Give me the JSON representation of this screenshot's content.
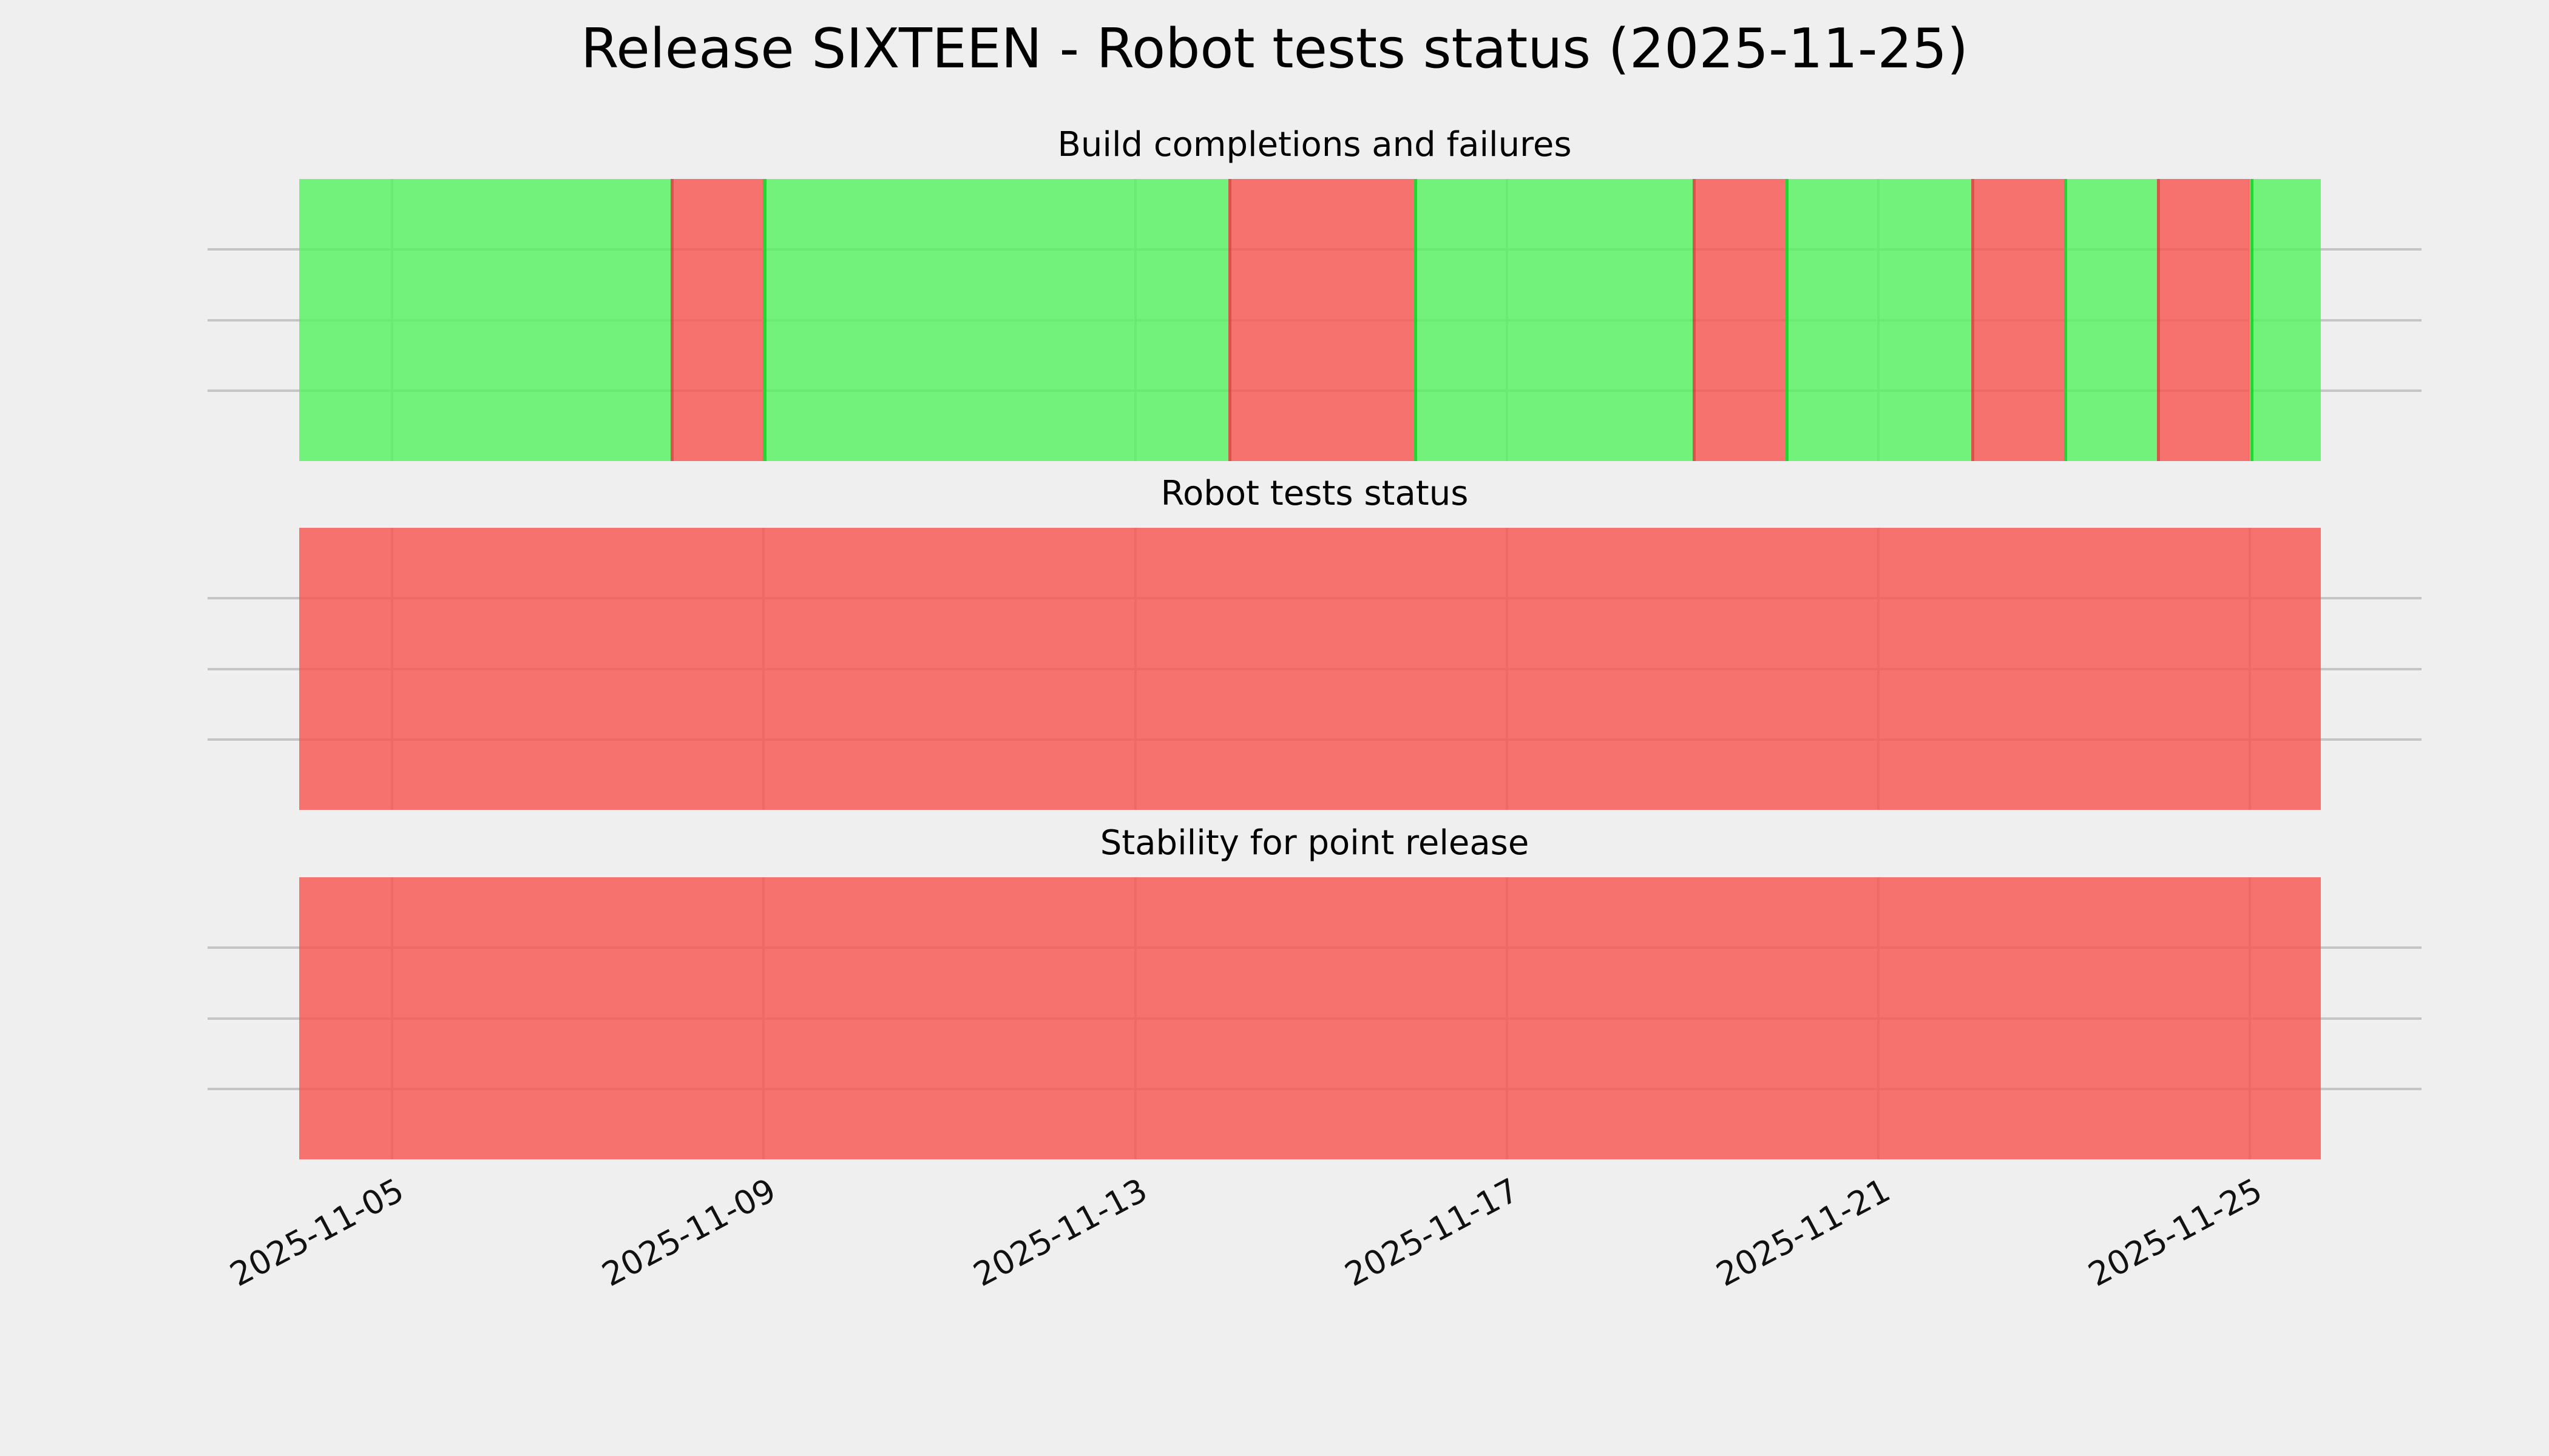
{
  "figure": {
    "title": "Release SIXTEEN - Robot tests status (2025-11-25)",
    "background_color": "#efefef",
    "grid_color": "#c5c5c5"
  },
  "chart_data": {
    "type": "heatmap",
    "title": "Release SIXTEEN - Robot tests status (2025-11-25)",
    "subtitle_panels": [
      "Build completions and failures",
      "Robot tests status",
      "Stability for point release"
    ],
    "x_tick_labels": [
      "2025-11-05",
      "2025-11-09",
      "2025-11-13",
      "2025-11-17",
      "2025-11-21",
      "2025-11-25"
    ],
    "x_tick_rotation_deg": 28,
    "days": [
      "2025-11-04",
      "2025-11-05",
      "2025-11-06",
      "2025-11-07",
      "2025-11-08",
      "2025-11-09",
      "2025-11-10",
      "2025-11-11",
      "2025-11-12",
      "2025-11-13",
      "2025-11-14",
      "2025-11-15",
      "2025-11-16",
      "2025-11-17",
      "2025-11-18",
      "2025-11-19",
      "2025-11-20",
      "2025-11-21",
      "2025-11-22",
      "2025-11-23",
      "2025-11-24",
      "2025-11-25"
    ],
    "last_day_fraction": 0.76,
    "colors": {
      "pass": "#52F35D",
      "fail": "#F8524F",
      "bar_alpha": 0.8,
      "grid": "#c5c5c5",
      "background": "#efefef"
    },
    "legend": "none",
    "y_axis": {
      "tick_labels": [],
      "gridlines_per_panel": 3
    },
    "panels": [
      {
        "title": "Build completions and failures",
        "day_status": [
          "pass",
          "pass",
          "pass",
          "pass",
          "fail",
          "pass",
          "pass",
          "pass",
          "pass",
          "pass",
          "fail",
          "fail",
          "pass",
          "pass",
          "pass",
          "fail",
          "pass",
          "pass",
          "fail",
          "pass",
          "fail",
          "pass"
        ]
      },
      {
        "title": "Robot tests status",
        "day_status": [
          "fail",
          "fail",
          "fail",
          "fail",
          "fail",
          "fail",
          "fail",
          "fail",
          "fail",
          "fail",
          "fail",
          "fail",
          "fail",
          "fail",
          "fail",
          "fail",
          "fail",
          "fail",
          "fail",
          "fail",
          "fail",
          "fail"
        ]
      },
      {
        "title": "Stability for point release",
        "day_status": [
          "fail",
          "fail",
          "fail",
          "fail",
          "fail",
          "fail",
          "fail",
          "fail",
          "fail",
          "fail",
          "fail",
          "fail",
          "fail",
          "fail",
          "fail",
          "fail",
          "fail",
          "fail",
          "fail",
          "fail",
          "fail",
          "fail"
        ]
      }
    ]
  }
}
